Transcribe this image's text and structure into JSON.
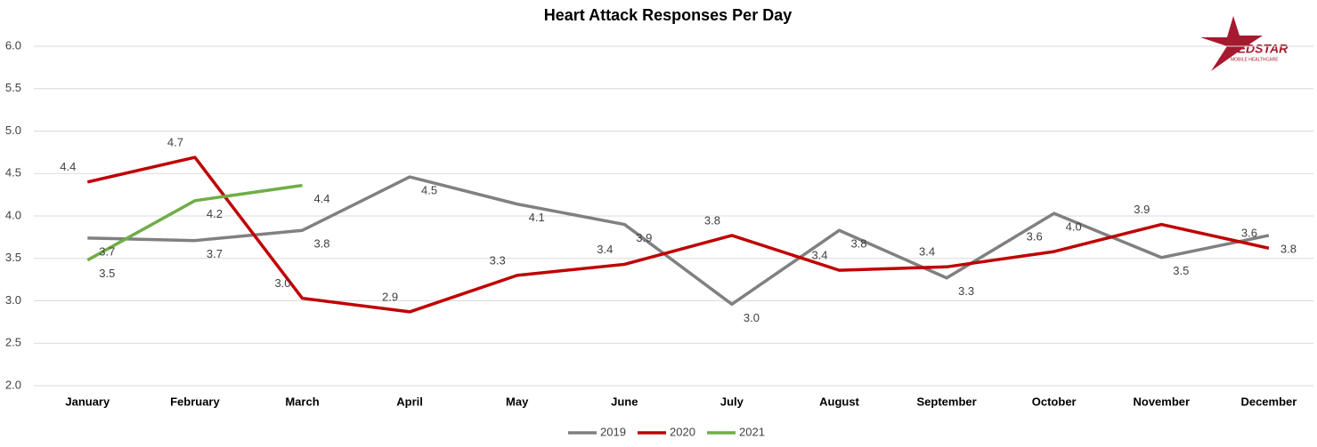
{
  "chart_data": {
    "type": "line",
    "title": "Heart Attack Responses Per Day",
    "logo": {
      "name": "MEDSTAR",
      "tagline": "MOBILE HEALTHCARE"
    },
    "categories": [
      "January",
      "February",
      "March",
      "April",
      "May",
      "June",
      "July",
      "August",
      "September",
      "October",
      "November",
      "December"
    ],
    "series": [
      {
        "name": "2019",
        "color": "#808080",
        "values": [
          3.74,
          3.71,
          3.83,
          4.46,
          4.14,
          3.9,
          2.96,
          3.83,
          3.27,
          4.03,
          3.51,
          3.77
        ],
        "value_labels": [
          "3.7",
          "3.7",
          "3.8",
          "4.5",
          "4.1",
          "3.9",
          "3.0",
          "3.8",
          "3.3",
          "4.0",
          "3.5",
          "3.8"
        ]
      },
      {
        "name": "2020",
        "color": "#c00000",
        "values": [
          4.4,
          4.69,
          3.03,
          2.87,
          3.3,
          3.43,
          3.77,
          3.36,
          3.4,
          3.58,
          3.9,
          3.62
        ],
        "value_labels": [
          "4.4",
          "4.7",
          "3.0",
          "2.9",
          "3.3",
          "3.4",
          "3.8",
          "3.4",
          "3.4",
          "3.6",
          "3.9",
          "3.6"
        ]
      },
      {
        "name": "2021",
        "color": "#70ad47",
        "values": [
          3.48,
          4.18,
          4.36,
          null,
          null,
          null,
          null,
          null,
          null,
          null,
          null,
          null
        ],
        "value_labels": [
          "3.5",
          "4.2",
          "4.4",
          null,
          null,
          null,
          null,
          null,
          null,
          null,
          null,
          null
        ]
      }
    ],
    "ylim": [
      2,
      6
    ],
    "yticks": [
      {
        "value": 2,
        "label": "2.0"
      },
      2.5,
      {
        "value": 3,
        "label": "3.0"
      },
      3.5,
      {
        "value": 4,
        "label": "4.0"
      },
      4.5,
      {
        "value": 5,
        "label": "5.0"
      },
      5.5,
      {
        "value": 6,
        "label": "6.0"
      }
    ],
    "grid": true,
    "legend": "bottom"
  }
}
